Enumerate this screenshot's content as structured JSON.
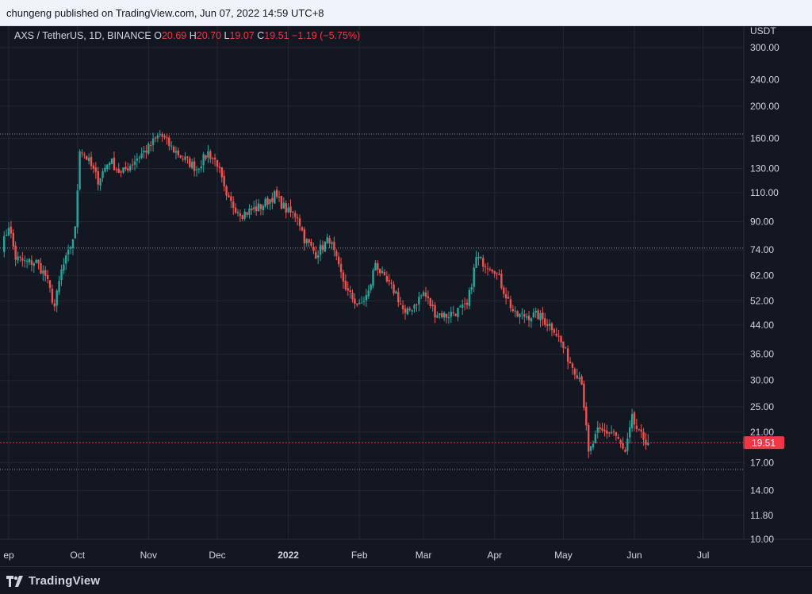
{
  "header": {
    "publisher": "chungeng published on TradingView.com, Jun 07, 2022 14:59 UTC+8"
  },
  "legend": {
    "symbol": "AXS / TetherUS, 1D, BINANCE",
    "open_label": "O",
    "open": "20.69",
    "high_label": "H",
    "high": "20.70",
    "low_label": "L",
    "low": "19.07",
    "close_label": "C",
    "close": "19.51",
    "change": "−1.19 (−5.75%)"
  },
  "footer": {
    "brand": "TradingView"
  },
  "colors": {
    "up": "#26a69a",
    "down": "#ef5350",
    "background": "#131722",
    "grid": "#232733",
    "price_label": "#f23645"
  },
  "chart_data": {
    "type": "candlestick",
    "title": "AXS / TetherUS, 1D, BINANCE",
    "y_unit": "USDT",
    "y_scale": "log",
    "ylim": [
      9.5,
      320
    ],
    "y_ticks": [
      "300.00",
      "240.00",
      "200.00",
      "160.00",
      "130.00",
      "110.00",
      "90.00",
      "74.00",
      "62.00",
      "52.00",
      "44.00",
      "36.00",
      "30.00",
      "25.00",
      "21.00",
      "17.00",
      "14.00",
      "11.80",
      "10.00"
    ],
    "x_ticks": [
      "ep",
      "Oct",
      "Nov",
      "Dec",
      "2022",
      "Feb",
      "Mar",
      "Apr",
      "May",
      "Jun",
      "Jul"
    ],
    "x_range": [
      "2021-08-29",
      "2022-07-18"
    ],
    "last_price": "19.51",
    "ref_lines": [
      165,
      75,
      16.2
    ],
    "close_anchors": [
      [
        "2021-08-29",
        75
      ],
      [
        "2021-09-01",
        88
      ],
      [
        "2021-09-04",
        70
      ],
      [
        "2021-09-08",
        68
      ],
      [
        "2021-09-13",
        68
      ],
      [
        "2021-09-17",
        62
      ],
      [
        "2021-09-21",
        50
      ],
      [
        "2021-09-24",
        64
      ],
      [
        "2021-09-27",
        72
      ],
      [
        "2021-09-30",
        85
      ],
      [
        "2021-10-02",
        150
      ],
      [
        "2021-10-05",
        140
      ],
      [
        "2021-10-10",
        120
      ],
      [
        "2021-10-15",
        138
      ],
      [
        "2021-10-20",
        125
      ],
      [
        "2021-10-27",
        140
      ],
      [
        "2021-11-01",
        150
      ],
      [
        "2021-11-06",
        165
      ],
      [
        "2021-11-11",
        150
      ],
      [
        "2021-11-16",
        140
      ],
      [
        "2021-11-22",
        130
      ],
      [
        "2021-11-27",
        145
      ],
      [
        "2021-12-01",
        135
      ],
      [
        "2021-12-05",
        105
      ],
      [
        "2021-12-12",
        95
      ],
      [
        "2021-12-20",
        100
      ],
      [
        "2021-12-26",
        108
      ],
      [
        "2022-01-01",
        96
      ],
      [
        "2022-01-05",
        94
      ],
      [
        "2022-01-08",
        80
      ],
      [
        "2022-01-13",
        72
      ],
      [
        "2022-01-19",
        80
      ],
      [
        "2022-01-23",
        65
      ],
      [
        "2022-01-27",
        55
      ],
      [
        "2022-02-01",
        50
      ],
      [
        "2022-02-05",
        55
      ],
      [
        "2022-02-08",
        68
      ],
      [
        "2022-02-12",
        60
      ],
      [
        "2022-02-17",
        55
      ],
      [
        "2022-02-21",
        47
      ],
      [
        "2022-03-01",
        55
      ],
      [
        "2022-03-06",
        48
      ],
      [
        "2022-03-11",
        47
      ],
      [
        "2022-03-20",
        50
      ],
      [
        "2022-03-24",
        70
      ],
      [
        "2022-04-01",
        65
      ],
      [
        "2022-04-05",
        56
      ],
      [
        "2022-04-10",
        47
      ],
      [
        "2022-04-20",
        47
      ],
      [
        "2022-04-27",
        43
      ],
      [
        "2022-05-04",
        34
      ],
      [
        "2022-05-09",
        30
      ],
      [
        "2022-05-12",
        18
      ],
      [
        "2022-05-16",
        21
      ],
      [
        "2022-05-23",
        21
      ],
      [
        "2022-05-28",
        18
      ],
      [
        "2022-05-31",
        23
      ],
      [
        "2022-06-03",
        20.7
      ],
      [
        "2022-06-07",
        19.51
      ]
    ]
  }
}
